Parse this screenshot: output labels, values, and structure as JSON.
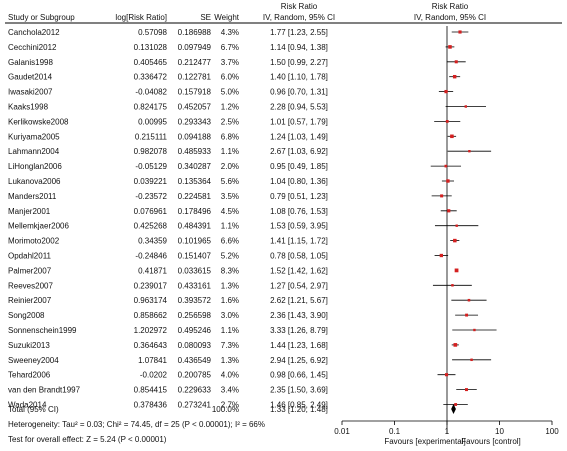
{
  "headers": {
    "study": "Study or Subgroup",
    "log_rr": "log[Risk Ratio]",
    "se": "SE",
    "weight": "Weight",
    "rr_top": "Risk Ratio",
    "rr_method": "IV, Random, 95% CI",
    "plot_top": "Risk Ratio",
    "plot_method": "IV, Random, 95% CI"
  },
  "chart_data": {
    "type": "forest",
    "x_scale": "log",
    "xlim": [
      0.01,
      100
    ],
    "x_ticks": [
      {
        "value": 0.01,
        "label": "0.01"
      },
      {
        "value": 0.1,
        "label": "0.1"
      },
      {
        "value": 1,
        "label": "1"
      },
      {
        "value": 10,
        "label": "10"
      },
      {
        "value": 100,
        "label": "100"
      }
    ],
    "favours_left": "Favours [experimental]",
    "favours_right": "Favours [control]",
    "studies": [
      {
        "name": "Canchola2012",
        "log_rr": "0.57098",
        "se": "0.186988",
        "weight": "4.3%",
        "ci_text": "1.77 [1.23, 2.55]",
        "rr": 1.77,
        "lo": 1.23,
        "hi": 2.55,
        "w": 4.3
      },
      {
        "name": "Cecchini2012",
        "log_rr": "0.131028",
        "se": "0.097949",
        "weight": "6.7%",
        "ci_text": "1.14 [0.94, 1.38]",
        "rr": 1.14,
        "lo": 0.94,
        "hi": 1.38,
        "w": 6.7
      },
      {
        "name": "Galanis1998",
        "log_rr": "0.405465",
        "se": "0.212477",
        "weight": "3.7%",
        "ci_text": "1.50 [0.99, 2.27]",
        "rr": 1.5,
        "lo": 0.99,
        "hi": 2.27,
        "w": 3.7
      },
      {
        "name": "Gaudet2014",
        "log_rr": "0.336472",
        "se": "0.122781",
        "weight": "6.0%",
        "ci_text": "1.40 [1.10, 1.78]",
        "rr": 1.4,
        "lo": 1.1,
        "hi": 1.78,
        "w": 6.0
      },
      {
        "name": "Iwasaki2007",
        "log_rr": "-0.04082",
        "se": "0.157918",
        "weight": "5.0%",
        "ci_text": "0.96 [0.70, 1.31]",
        "rr": 0.96,
        "lo": 0.7,
        "hi": 1.31,
        "w": 5.0
      },
      {
        "name": "Kaaks1998",
        "log_rr": "0.824175",
        "se": "0.452057",
        "weight": "1.2%",
        "ci_text": "2.28 [0.94, 5.53]",
        "rr": 2.28,
        "lo": 0.94,
        "hi": 5.53,
        "w": 1.2
      },
      {
        "name": "Kerlikowske2008",
        "log_rr": "0.00995",
        "se": "0.293343",
        "weight": "2.5%",
        "ci_text": "1.01 [0.57, 1.79]",
        "rr": 1.01,
        "lo": 0.57,
        "hi": 1.79,
        "w": 2.5
      },
      {
        "name": "Kuriyama2005",
        "log_rr": "0.215111",
        "se": "0.094188",
        "weight": "6.8%",
        "ci_text": "1.24 [1.03, 1.49]",
        "rr": 1.24,
        "lo": 1.03,
        "hi": 1.49,
        "w": 6.8
      },
      {
        "name": "Lahmann2004",
        "log_rr": "0.982078",
        "se": "0.485933",
        "weight": "1.1%",
        "ci_text": "2.67 [1.03, 6.92]",
        "rr": 2.67,
        "lo": 1.03,
        "hi": 6.92,
        "w": 1.1
      },
      {
        "name": "LiHonglan2006",
        "log_rr": "-0.05129",
        "se": "0.340287",
        "weight": "2.0%",
        "ci_text": "0.95 [0.49, 1.85]",
        "rr": 0.95,
        "lo": 0.49,
        "hi": 1.85,
        "w": 2.0
      },
      {
        "name": "Lukanova2006",
        "log_rr": "0.039221",
        "se": "0.135364",
        "weight": "5.6%",
        "ci_text": "1.04 [0.80, 1.36]",
        "rr": 1.04,
        "lo": 0.8,
        "hi": 1.36,
        "w": 5.6
      },
      {
        "name": "Manders2011",
        "log_rr": "-0.23572",
        "se": "0.224581",
        "weight": "3.5%",
        "ci_text": "0.79 [0.51, 1.23]",
        "rr": 0.79,
        "lo": 0.51,
        "hi": 1.23,
        "w": 3.5
      },
      {
        "name": "Manjer2001",
        "log_rr": "0.076961",
        "se": "0.178496",
        "weight": "4.5%",
        "ci_text": "1.08 [0.76, 1.53]",
        "rr": 1.08,
        "lo": 0.76,
        "hi": 1.53,
        "w": 4.5
      },
      {
        "name": "Mellemkjaer2006",
        "log_rr": "0.425268",
        "se": "0.484391",
        "weight": "1.1%",
        "ci_text": "1.53 [0.59, 3.95]",
        "rr": 1.53,
        "lo": 0.59,
        "hi": 3.95,
        "w": 1.1
      },
      {
        "name": "Morimoto2002",
        "log_rr": "0.34359",
        "se": "0.101965",
        "weight": "6.6%",
        "ci_text": "1.41 [1.15, 1.72]",
        "rr": 1.41,
        "lo": 1.15,
        "hi": 1.72,
        "w": 6.6
      },
      {
        "name": "Opdahl2011",
        "log_rr": "-0.24846",
        "se": "0.151407",
        "weight": "5.2%",
        "ci_text": "0.78 [0.58, 1.05]",
        "rr": 0.78,
        "lo": 0.58,
        "hi": 1.05,
        "w": 5.2
      },
      {
        "name": "Palmer2007",
        "log_rr": "0.41871",
        "se": "0.033615",
        "weight": "8.3%",
        "ci_text": "1.52 [1.42, 1.62]",
        "rr": 1.52,
        "lo": 1.42,
        "hi": 1.62,
        "w": 8.3
      },
      {
        "name": "Reeves2007",
        "log_rr": "0.239017",
        "se": "0.433161",
        "weight": "1.3%",
        "ci_text": "1.27 [0.54, 2.97]",
        "rr": 1.27,
        "lo": 0.54,
        "hi": 2.97,
        "w": 1.3
      },
      {
        "name": "Reinier2007",
        "log_rr": "0.963174",
        "se": "0.393572",
        "weight": "1.6%",
        "ci_text": "2.62 [1.21, 5.67]",
        "rr": 2.62,
        "lo": 1.21,
        "hi": 5.67,
        "w": 1.6
      },
      {
        "name": "Song2008",
        "log_rr": "0.858662",
        "se": "0.256598",
        "weight": "3.0%",
        "ci_text": "2.36 [1.43, 3.90]",
        "rr": 2.36,
        "lo": 1.43,
        "hi": 3.9,
        "w": 3.0
      },
      {
        "name": "Sonnenschein1999",
        "log_rr": "1.202972",
        "se": "0.495246",
        "weight": "1.1%",
        "ci_text": "3.33 [1.26, 8.79]",
        "rr": 3.33,
        "lo": 1.26,
        "hi": 8.79,
        "w": 1.1
      },
      {
        "name": "Suzuki2013",
        "log_rr": "0.364643",
        "se": "0.080093",
        "weight": "7.3%",
        "ci_text": "1.44 [1.23, 1.68]",
        "rr": 1.44,
        "lo": 1.23,
        "hi": 1.68,
        "w": 7.3
      },
      {
        "name": "Sweeney2004",
        "log_rr": "1.07841",
        "se": "0.436549",
        "weight": "1.3%",
        "ci_text": "2.94 [1.25, 6.92]",
        "rr": 2.94,
        "lo": 1.25,
        "hi": 6.92,
        "w": 1.3
      },
      {
        "name": "Tehard2006",
        "log_rr": "-0.0202",
        "se": "0.200785",
        "weight": "4.0%",
        "ci_text": "0.98 [0.66, 1.45]",
        "rr": 0.98,
        "lo": 0.66,
        "hi": 1.45,
        "w": 4.0
      },
      {
        "name": "van den Brandt1997",
        "log_rr": "0.854415",
        "se": "0.229633",
        "weight": "3.4%",
        "ci_text": "2.35 [1.50, 3.69]",
        "rr": 2.35,
        "lo": 1.5,
        "hi": 3.69,
        "w": 3.4
      },
      {
        "name": "Wada2014",
        "log_rr": "0.378436",
        "se": "0.273241",
        "weight": "2.7%",
        "ci_text": "1.46 [0.85, 2.49]",
        "rr": 1.46,
        "lo": 0.85,
        "hi": 2.49,
        "w": 2.7
      }
    ],
    "total": {
      "label": "Total (95% CI)",
      "weight": "100.0%",
      "ci_text": "1.33 [1.20, 1.48]",
      "rr": 1.33,
      "lo": 1.2,
      "hi": 1.48
    },
    "heterogeneity": "Heterogeneity: Tau² = 0.03; Chi² = 74.45, df = 25 (P < 0.00001); I² = 66%",
    "overall_effect": "Test for overall effect: Z = 5.24 (P < 0.00001)",
    "colors": {
      "square": "#d42020",
      "line": "#000000",
      "diamond": "#000000",
      "text": "#111111"
    }
  }
}
